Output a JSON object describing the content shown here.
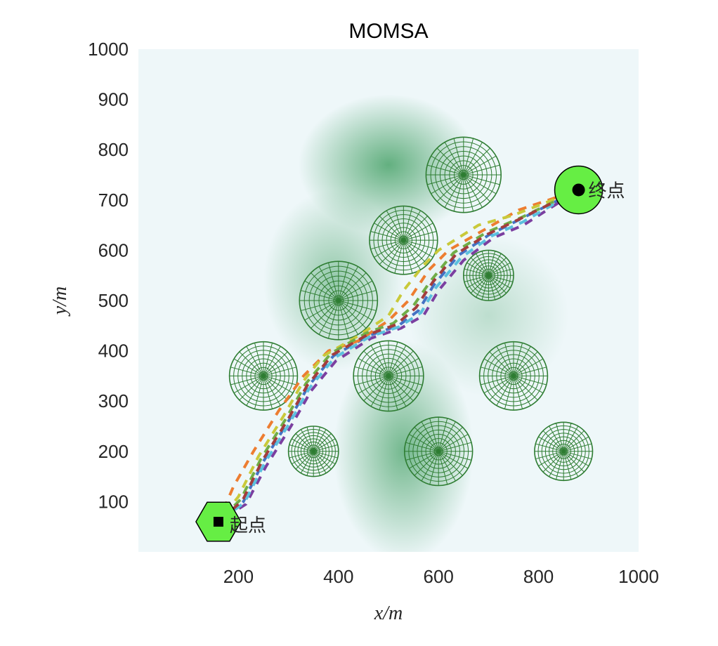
{
  "chart_data": {
    "type": "scatter",
    "title": "MOMSA",
    "xlabel": "x/m",
    "ylabel": "y/m",
    "xlim": [
      0,
      1000
    ],
    "ylim": [
      0,
      1000
    ],
    "xticks": [
      200,
      400,
      600,
      800,
      1000
    ],
    "yticks": [
      100,
      200,
      300,
      400,
      500,
      600,
      700,
      800,
      900,
      1000
    ],
    "grid": false,
    "legend": "none",
    "background": {
      "base_color": "#eef7f9",
      "mountain_color": "#4aa36a",
      "peaks": [
        {
          "x": 500,
          "y": 770,
          "sx": 90,
          "sy": 70,
          "a": 0.85
        },
        {
          "x": 390,
          "y": 540,
          "sx": 70,
          "sy": 90,
          "a": 0.55
        },
        {
          "x": 530,
          "y": 200,
          "sx": 70,
          "sy": 110,
          "a": 0.75
        },
        {
          "x": 700,
          "y": 470,
          "sx": 80,
          "sy": 80,
          "a": 0.3
        }
      ]
    },
    "threats": {
      "color": "#2e7d32",
      "items": [
        {
          "x": 650,
          "y": 750,
          "r": 75
        },
        {
          "x": 530,
          "y": 620,
          "r": 68
        },
        {
          "x": 700,
          "y": 550,
          "r": 50
        },
        {
          "x": 400,
          "y": 500,
          "r": 78
        },
        {
          "x": 250,
          "y": 350,
          "r": 68
        },
        {
          "x": 500,
          "y": 350,
          "r": 70
        },
        {
          "x": 750,
          "y": 350,
          "r": 68
        },
        {
          "x": 350,
          "y": 200,
          "r": 50
        },
        {
          "x": 600,
          "y": 200,
          "r": 68
        },
        {
          "x": 850,
          "y": 200,
          "r": 58
        }
      ]
    },
    "start": {
      "x": 160,
      "y": 60,
      "label": "起点",
      "fill": "#66ee44"
    },
    "goal": {
      "x": 880,
      "y": 720,
      "label": "终点",
      "fill": "#66ee44"
    },
    "series": [
      {
        "color": "#4472c4",
        "points": [
          [
            160,
            60
          ],
          [
            210,
            100
          ],
          [
            250,
            180
          ],
          [
            300,
            260
          ],
          [
            340,
            330
          ],
          [
            390,
            390
          ],
          [
            460,
            430
          ],
          [
            520,
            450
          ],
          [
            560,
            480
          ],
          [
            590,
            530
          ],
          [
            640,
            590
          ],
          [
            700,
            630
          ],
          [
            760,
            660
          ],
          [
            880,
            720
          ]
        ]
      },
      {
        "color": "#ed7d31",
        "points": [
          [
            160,
            60
          ],
          [
            190,
            130
          ],
          [
            230,
            200
          ],
          [
            280,
            280
          ],
          [
            330,
            350
          ],
          [
            380,
            400
          ],
          [
            440,
            420
          ],
          [
            500,
            460
          ],
          [
            540,
            500
          ],
          [
            580,
            560
          ],
          [
            620,
            600
          ],
          [
            690,
            640
          ],
          [
            760,
            680
          ],
          [
            880,
            720
          ]
        ]
      },
      {
        "color": "#c9c93a",
        "points": [
          [
            160,
            60
          ],
          [
            200,
            110
          ],
          [
            240,
            190
          ],
          [
            290,
            270
          ],
          [
            330,
            340
          ],
          [
            370,
            390
          ],
          [
            440,
            430
          ],
          [
            500,
            470
          ],
          [
            530,
            520
          ],
          [
            570,
            570
          ],
          [
            600,
            600
          ],
          [
            680,
            650
          ],
          [
            750,
            670
          ],
          [
            880,
            720
          ]
        ]
      },
      {
        "color": "#7b3fa0",
        "points": [
          [
            160,
            60
          ],
          [
            215,
            95
          ],
          [
            255,
            170
          ],
          [
            305,
            250
          ],
          [
            345,
            320
          ],
          [
            395,
            380
          ],
          [
            465,
            425
          ],
          [
            525,
            445
          ],
          [
            570,
            470
          ],
          [
            600,
            520
          ],
          [
            650,
            580
          ],
          [
            710,
            625
          ],
          [
            770,
            650
          ],
          [
            880,
            720
          ]
        ]
      },
      {
        "color": "#70ad47",
        "points": [
          [
            160,
            60
          ],
          [
            205,
            105
          ],
          [
            245,
            185
          ],
          [
            295,
            265
          ],
          [
            335,
            335
          ],
          [
            385,
            395
          ],
          [
            455,
            435
          ],
          [
            510,
            455
          ],
          [
            550,
            490
          ],
          [
            585,
            540
          ],
          [
            630,
            595
          ],
          [
            695,
            635
          ],
          [
            765,
            665
          ],
          [
            880,
            720
          ]
        ]
      },
      {
        "color": "#5bc0de",
        "points": [
          [
            160,
            60
          ],
          [
            212,
            98
          ],
          [
            252,
            176
          ],
          [
            302,
            256
          ],
          [
            342,
            326
          ],
          [
            392,
            386
          ],
          [
            462,
            428
          ],
          [
            522,
            448
          ],
          [
            565,
            476
          ],
          [
            595,
            526
          ],
          [
            645,
            585
          ],
          [
            705,
            628
          ],
          [
            768,
            656
          ],
          [
            880,
            720
          ]
        ]
      },
      {
        "color": "#a33d3d",
        "points": [
          [
            160,
            60
          ],
          [
            208,
            102
          ],
          [
            248,
            182
          ],
          [
            298,
            262
          ],
          [
            338,
            332
          ],
          [
            388,
            392
          ],
          [
            458,
            432
          ],
          [
            515,
            452
          ],
          [
            555,
            486
          ],
          [
            588,
            536
          ],
          [
            635,
            592
          ],
          [
            698,
            632
          ],
          [
            762,
            662
          ],
          [
            880,
            720
          ]
        ]
      }
    ]
  }
}
